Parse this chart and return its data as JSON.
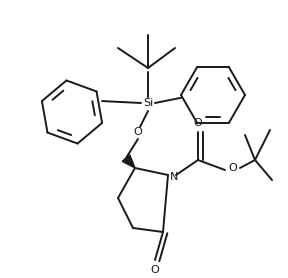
{
  "background_color": "#ffffff",
  "line_color": "#1a1a1a",
  "line_width": 1.4,
  "figsize": [
    2.88,
    2.78
  ],
  "dpi": 100,
  "Si_label": "Si",
  "N_label": "N",
  "O_labels": [
    "O",
    "O",
    "O",
    "O"
  ]
}
